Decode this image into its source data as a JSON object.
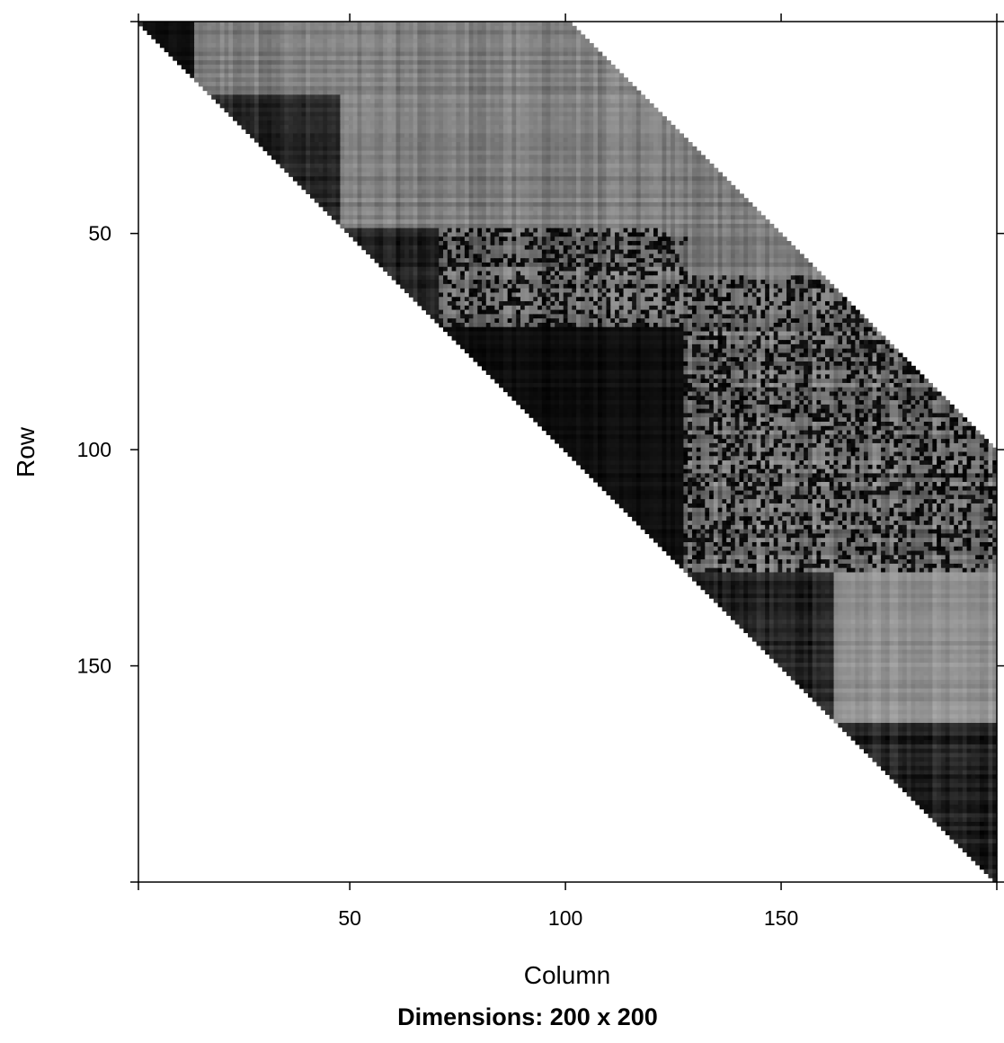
{
  "chart_data": {
    "type": "heatmap",
    "matrix_kind": "upper-triangular band (sparse matrix image)",
    "nrow": 200,
    "ncol": 200,
    "band_width": 100,
    "xlabel": "Column",
    "ylabel": "Row",
    "sub_title": "Dimensions: 200 x 200",
    "x_ticks": [
      50,
      100,
      150
    ],
    "y_ticks": [
      50,
      100,
      150
    ],
    "xlim": [
      1,
      200
    ],
    "ylim": [
      200,
      1
    ],
    "y_axis_reversed": true,
    "colorscale": [
      "#000000",
      "#ffffff"
    ],
    "blocks": [
      {
        "rows": [
          1,
          48
        ],
        "cols": [
          1,
          48
        ],
        "level": "dark"
      },
      {
        "rows": [
          1,
          48
        ],
        "cols": [
          2,
          14
        ],
        "level": "very-dark"
      },
      {
        "rows": [
          1,
          17
        ],
        "cols": [
          14,
          48
        ],
        "level": "mid-gray"
      },
      {
        "rows": [
          1,
          48
        ],
        "cols": [
          48,
          100
        ],
        "level": "mid-gray"
      },
      {
        "rows": [
          1,
          60
        ],
        "cols": [
          100,
          160
        ],
        "level": "mid-gray"
      },
      {
        "rows": [
          49,
          71
        ],
        "cols": [
          49,
          71
        ],
        "level": "dark"
      },
      {
        "rows": [
          49,
          71
        ],
        "cols": [
          71,
          128
        ],
        "level": "mixed"
      },
      {
        "rows": [
          72,
          128
        ],
        "cols": [
          72,
          128
        ],
        "level": "very-dark"
      },
      {
        "rows": [
          72,
          128
        ],
        "cols": [
          128,
          200
        ],
        "level": "mixed"
      },
      {
        "rows": [
          60,
          140
        ],
        "cols": [
          128,
          200
        ],
        "level": "mixed"
      },
      {
        "rows": [
          129,
          163
        ],
        "cols": [
          129,
          163
        ],
        "level": "dark"
      },
      {
        "rows": [
          129,
          163
        ],
        "cols": [
          163,
          200
        ],
        "level": "light-gray"
      },
      {
        "rows": [
          164,
          200
        ],
        "cols": [
          164,
          200
        ],
        "level": "dark"
      }
    ]
  }
}
